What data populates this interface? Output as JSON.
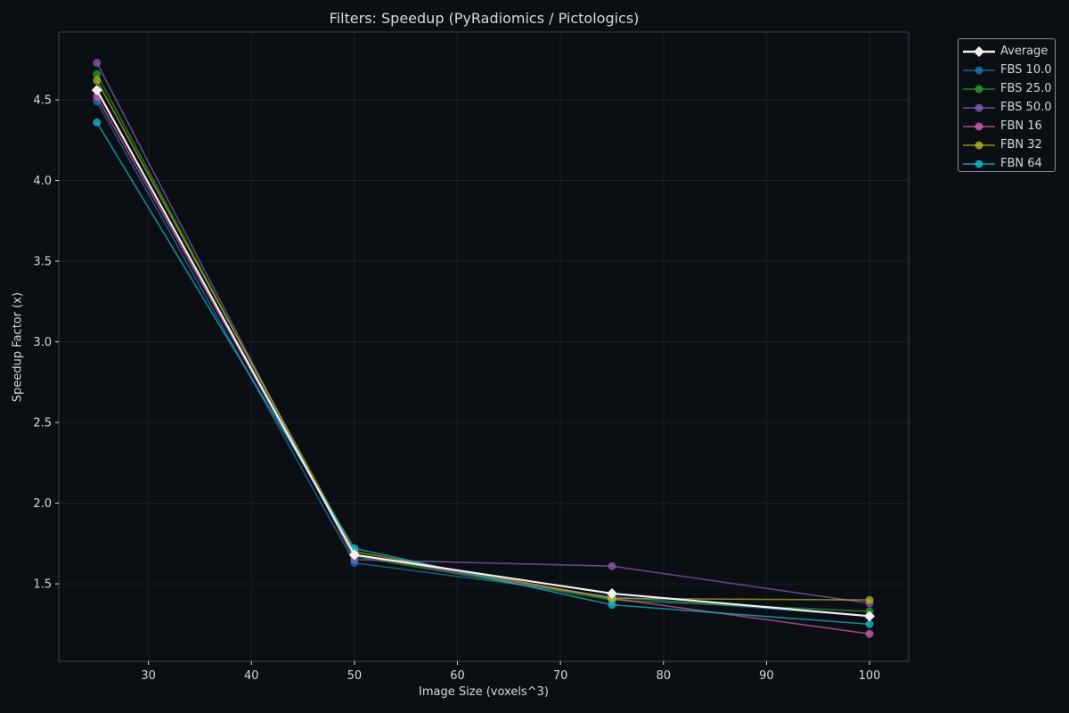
{
  "chart_data": {
    "type": "line",
    "title": "Filters: Speedup (PyRadiomics / Pictologics)",
    "xlabel": "Image Size (voxels^3)",
    "ylabel": "Speedup Factor (x)",
    "x": [
      25,
      50,
      75,
      100
    ],
    "xticks": [
      30,
      40,
      50,
      60,
      70,
      80,
      90,
      100
    ],
    "yticks": [
      1.5,
      2.0,
      2.5,
      3.0,
      3.5,
      4.0,
      4.5
    ],
    "xlim": [
      21.3,
      103.8
    ],
    "ylim": [
      1.02,
      4.92
    ],
    "grid": true,
    "legend_position": "upper right outside",
    "series": [
      {
        "name": "Average",
        "color": "#f0f0f0",
        "marker": "diamond",
        "values": [
          4.56,
          1.68,
          1.44,
          1.3
        ]
      },
      {
        "name": "FBS 10.0",
        "color": "#1f77b4",
        "marker": "circle",
        "values": [
          4.49,
          1.63,
          1.42,
          1.3
        ]
      },
      {
        "name": "FBS 25.0",
        "color": "#2ca02c",
        "marker": "circle",
        "values": [
          4.66,
          1.67,
          1.4,
          1.33
        ]
      },
      {
        "name": "FBS 50.0",
        "color": "#8a5fb8",
        "marker": "circle",
        "values": [
          4.73,
          1.65,
          1.61,
          1.38
        ]
      },
      {
        "name": "FBN 16",
        "color": "#d55fb0",
        "marker": "circle",
        "values": [
          4.52,
          1.68,
          1.41,
          1.19
        ]
      },
      {
        "name": "FBN 32",
        "color": "#b5b524",
        "marker": "circle",
        "values": [
          4.62,
          1.7,
          1.41,
          1.4
        ]
      },
      {
        "name": "FBN 64",
        "color": "#17becf",
        "marker": "circle",
        "values": [
          4.36,
          1.72,
          1.37,
          1.25
        ]
      }
    ]
  },
  "colors": {
    "background": "#0b0e13",
    "axis": "#3a4150",
    "grid": "#1c2129",
    "text": "#d4d8de"
  }
}
